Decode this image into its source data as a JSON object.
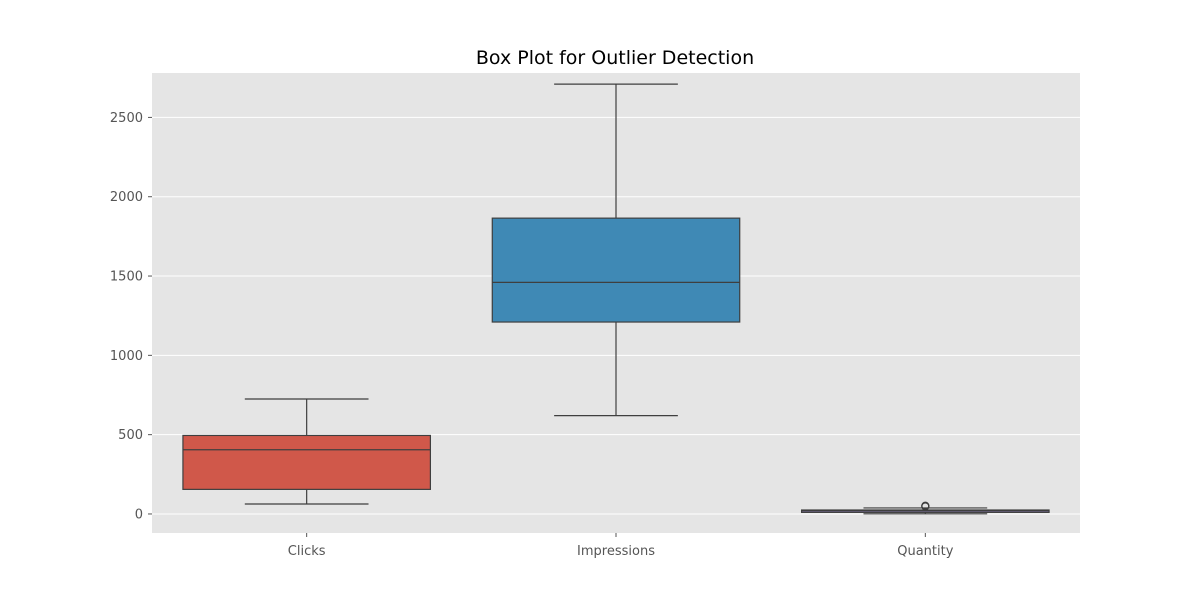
{
  "chart_data": {
    "type": "box",
    "title": "Box Plot for Outlier Detection",
    "xlabel": "",
    "ylabel": "",
    "ylim": [
      -120,
      2780
    ],
    "yticks": [
      0,
      500,
      1000,
      1500,
      2000,
      2500
    ],
    "grid": true,
    "categories": [
      "Clicks",
      "Impressions",
      "Quantity"
    ],
    "boxes": [
      {
        "category": "Clicks",
        "whisker_low": 63,
        "q1": 155,
        "median": 405,
        "q3": 495,
        "whisker_high": 725,
        "outliers": [],
        "color": "#d0584a"
      },
      {
        "category": "Impressions",
        "whisker_low": 620,
        "q1": 1210,
        "median": 1460,
        "q3": 1865,
        "whisker_high": 2710,
        "outliers": [],
        "color": "#3f89b5"
      },
      {
        "category": "Quantity",
        "whisker_low": 1,
        "q1": 10,
        "median": 20,
        "q3": 25,
        "whisker_high": 38,
        "outliers": [
          48,
          50,
          52
        ],
        "color": "#8d7fb5"
      }
    ]
  },
  "colors": {
    "plot_background": "#e5e5e5",
    "grid": "#ffffff",
    "line": "#3f3f3f"
  }
}
